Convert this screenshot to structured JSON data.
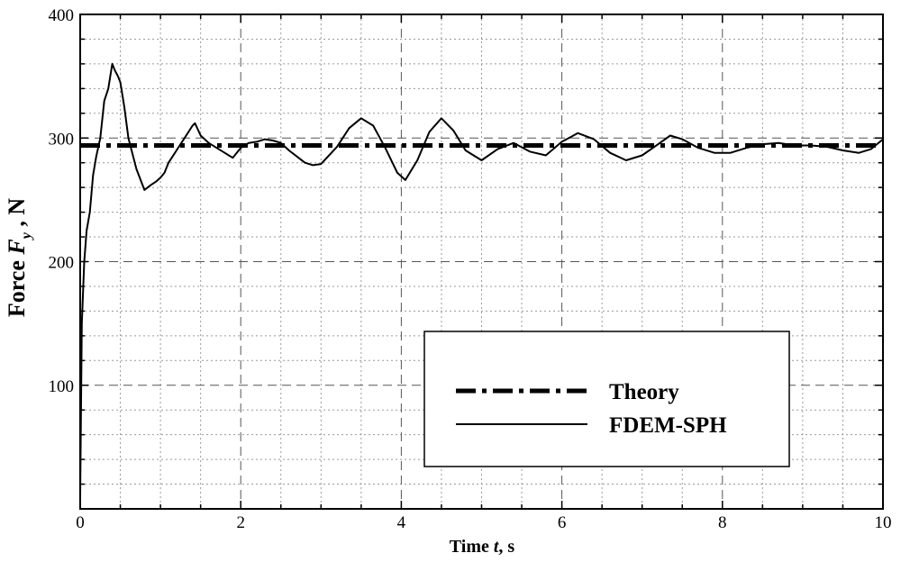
{
  "chart_data": {
    "type": "line",
    "xlim": [
      0,
      10
    ],
    "ylim": [
      0,
      400
    ],
    "x_ticks": [
      0,
      2,
      4,
      6,
      8,
      10
    ],
    "y_ticks": [
      100,
      200,
      300,
      400
    ],
    "x_tick_labels": [
      "0",
      "2",
      "4",
      "6",
      "8",
      "10"
    ],
    "y_tick_labels": [
      "100",
      "200",
      "300",
      "400"
    ],
    "xlabel": "Time t, s",
    "ylabel": "Force Fy , N",
    "xlabel_parts": {
      "pre": "Time ",
      "var": "t",
      "post": ", s"
    },
    "ylabel_parts": {
      "pre": "Force ",
      "var": "F",
      "sub": "y",
      "post": " , N"
    },
    "grid": "major dashed, minor dotted",
    "legend_position": "lower-right",
    "series": [
      {
        "name": "Theory",
        "style": "dash-dot",
        "x": [
          0,
          10
        ],
        "y": [
          294,
          294
        ]
      },
      {
        "name": "FDEM-SPH",
        "style": "solid",
        "x": [
          0,
          0.02,
          0.05,
          0.08,
          0.12,
          0.16,
          0.2,
          0.25,
          0.3,
          0.35,
          0.4,
          0.43,
          0.47,
          0.5,
          0.55,
          0.6,
          0.7,
          0.8,
          0.88,
          0.95,
          1.0,
          1.05,
          1.1,
          1.15,
          1.2,
          1.3,
          1.4,
          1.43,
          1.5,
          1.6,
          1.7,
          1.8,
          1.9,
          2.0,
          2.1,
          2.2,
          2.3,
          2.4,
          2.5,
          2.6,
          2.7,
          2.8,
          2.9,
          3.0,
          3.2,
          3.35,
          3.5,
          3.65,
          3.8,
          3.95,
          4.05,
          4.2,
          4.35,
          4.5,
          4.65,
          4.8,
          5.0,
          5.2,
          5.4,
          5.6,
          5.8,
          6.0,
          6.2,
          6.4,
          6.6,
          6.8,
          7.0,
          7.2,
          7.35,
          7.5,
          7.7,
          7.9,
          8.1,
          8.3,
          8.5,
          8.7,
          8.9,
          9.1,
          9.3,
          9.5,
          9.7,
          9.85,
          10.0
        ],
        "y": [
          10,
          150,
          200,
          225,
          240,
          270,
          285,
          300,
          330,
          340,
          360,
          355,
          350,
          345,
          325,
          300,
          275,
          258,
          262,
          265,
          268,
          272,
          280,
          285,
          290,
          300,
          310,
          312,
          302,
          296,
          292,
          288,
          284,
          292,
          296,
          297,
          299,
          298,
          296,
          290,
          285,
          280,
          278,
          279,
          293,
          308,
          316,
          310,
          292,
          272,
          266,
          282,
          305,
          316,
          306,
          290,
          282,
          291,
          296,
          289,
          286,
          297,
          304,
          299,
          288,
          282,
          286,
          295,
          302,
          299,
          292,
          288,
          288,
          292,
          295,
          296,
          294,
          294,
          293,
          290,
          288,
          291,
          299
        ]
      }
    ]
  }
}
